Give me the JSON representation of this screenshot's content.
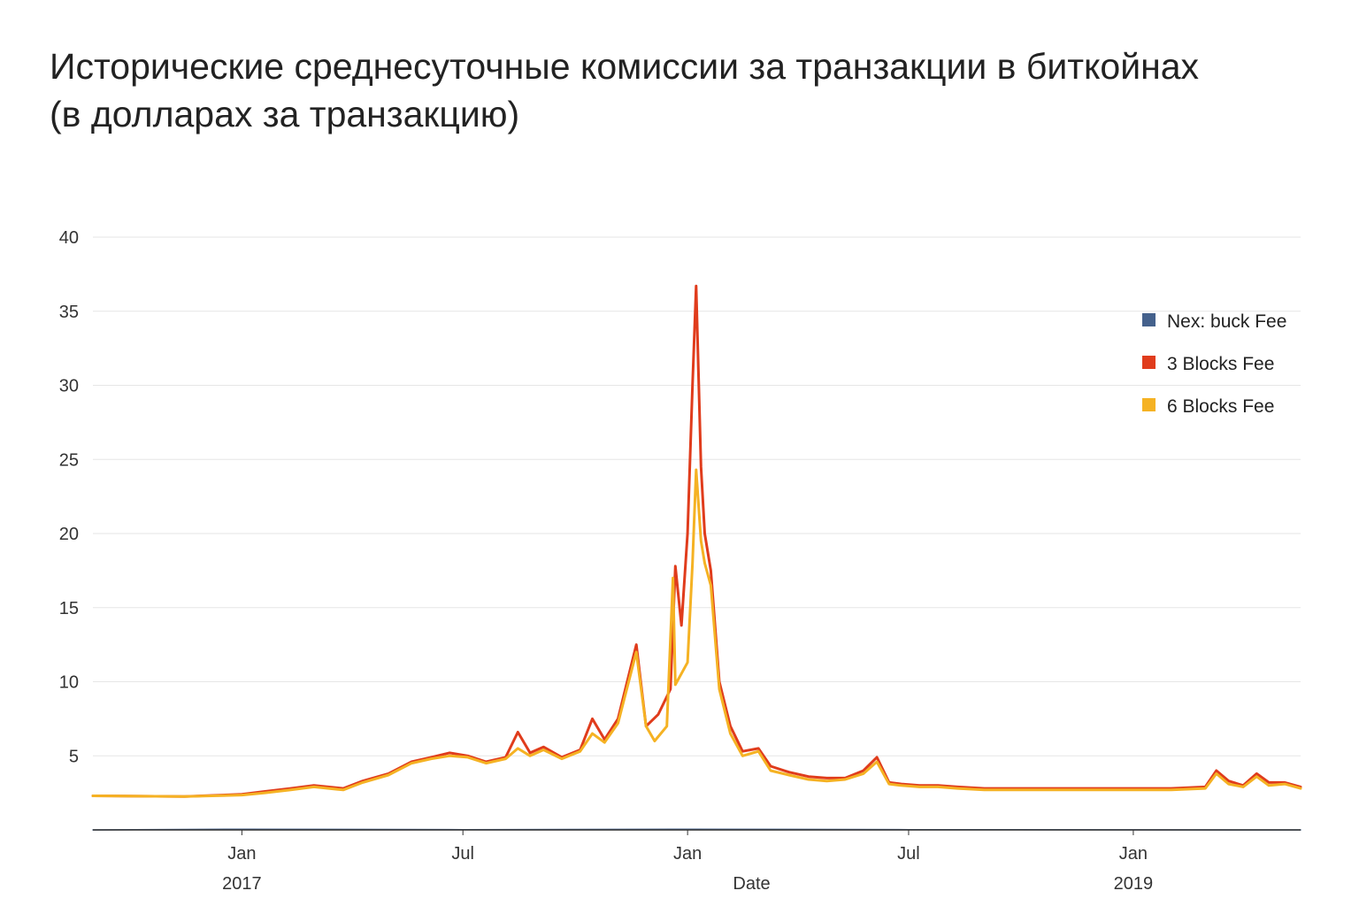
{
  "title_line1": "Исторические среднесуточные комиссии за транзакции в биткойнах",
  "title_line2": "(в долларах за транзакцию)",
  "chart_data": {
    "type": "line",
    "title": "Исторические среднесуточные комиссии за транзакции в биткойнах (в долларах за транзакцию)",
    "xlabel": "Date",
    "ylabel": "",
    "ylim": [
      0,
      40
    ],
    "xlim": [
      "2016-09-01",
      "2019-05-18"
    ],
    "y_ticks": [
      5,
      10,
      15,
      20,
      25,
      30,
      35,
      40
    ],
    "x_ticks": [
      {
        "date": "2017-01-01",
        "label": "Jan",
        "sublabel": "2017"
      },
      {
        "date": "2017-07-01",
        "label": "Jul",
        "sublabel": ""
      },
      {
        "date": "2018-01-01",
        "label": "Jan",
        "sublabel": ""
      },
      {
        "date": "2018-07-01",
        "label": "Jul",
        "sublabel": ""
      },
      {
        "date": "2019-01-01",
        "label": "Jan",
        "sublabel": "2019"
      }
    ],
    "grid": "horizontal",
    "legend_position": "right",
    "series": [
      {
        "name": "Nex: buck Fee",
        "color": "#44618c",
        "points": [
          [
            "2016-09-01",
            0.0
          ],
          [
            "2017-01-01",
            0.05
          ],
          [
            "2017-07-01",
            0.02
          ],
          [
            "2018-01-01",
            0.05
          ],
          [
            "2018-07-01",
            0.02
          ],
          [
            "2019-05-18",
            0.0
          ]
        ]
      },
      {
        "name": "3 Blocks Fee",
        "color": "#e03c1c",
        "points": [
          [
            "2016-09-01",
            2.3
          ],
          [
            "2016-11-15",
            2.25
          ],
          [
            "2017-01-01",
            2.4
          ],
          [
            "2017-01-20",
            2.6
          ],
          [
            "2017-02-10",
            2.8
          ],
          [
            "2017-03-01",
            3.0
          ],
          [
            "2017-03-25",
            2.8
          ],
          [
            "2017-04-10",
            3.3
          ],
          [
            "2017-05-01",
            3.8
          ],
          [
            "2017-05-20",
            4.6
          ],
          [
            "2017-06-05",
            4.9
          ],
          [
            "2017-06-20",
            5.2
          ],
          [
            "2017-07-05",
            5.0
          ],
          [
            "2017-07-20",
            4.6
          ],
          [
            "2017-08-05",
            4.9
          ],
          [
            "2017-08-15",
            6.6
          ],
          [
            "2017-08-25",
            5.2
          ],
          [
            "2017-09-05",
            5.6
          ],
          [
            "2017-09-20",
            4.9
          ],
          [
            "2017-10-05",
            5.4
          ],
          [
            "2017-10-15",
            7.5
          ],
          [
            "2017-10-25",
            6.1
          ],
          [
            "2017-11-05",
            7.5
          ],
          [
            "2017-11-20",
            12.5
          ],
          [
            "2017-11-28",
            7.0
          ],
          [
            "2017-12-08",
            7.8
          ],
          [
            "2017-12-18",
            9.5
          ],
          [
            "2017-12-22",
            17.8
          ],
          [
            "2017-12-27",
            13.8
          ],
          [
            "2018-01-01",
            20.0
          ],
          [
            "2018-01-05",
            30.0
          ],
          [
            "2018-01-08",
            36.7
          ],
          [
            "2018-01-12",
            24.5
          ],
          [
            "2018-01-15",
            20.0
          ],
          [
            "2018-01-20",
            17.5
          ],
          [
            "2018-01-27",
            10.0
          ],
          [
            "2018-02-05",
            7.0
          ],
          [
            "2018-02-15",
            5.3
          ],
          [
            "2018-02-28",
            5.5
          ],
          [
            "2018-03-10",
            4.3
          ],
          [
            "2018-03-25",
            3.9
          ],
          [
            "2018-04-10",
            3.6
          ],
          [
            "2018-04-25",
            3.5
          ],
          [
            "2018-05-10",
            3.5
          ],
          [
            "2018-05-25",
            4.0
          ],
          [
            "2018-06-05",
            4.9
          ],
          [
            "2018-06-15",
            3.2
          ],
          [
            "2018-06-25",
            3.1
          ],
          [
            "2018-07-10",
            3.0
          ],
          [
            "2018-07-25",
            3.0
          ],
          [
            "2018-08-10",
            2.9
          ],
          [
            "2018-09-01",
            2.8
          ],
          [
            "2018-10-01",
            2.8
          ],
          [
            "2018-11-01",
            2.8
          ],
          [
            "2018-12-01",
            2.8
          ],
          [
            "2019-01-01",
            2.8
          ],
          [
            "2019-02-01",
            2.8
          ],
          [
            "2019-03-01",
            2.9
          ],
          [
            "2019-03-10",
            4.0
          ],
          [
            "2019-03-20",
            3.3
          ],
          [
            "2019-04-01",
            3.0
          ],
          [
            "2019-04-12",
            3.8
          ],
          [
            "2019-04-22",
            3.2
          ],
          [
            "2019-05-05",
            3.2
          ],
          [
            "2019-05-18",
            2.9
          ]
        ]
      },
      {
        "name": "6 Blocks Fee",
        "color": "#f5b223",
        "points": [
          [
            "2016-09-01",
            2.3
          ],
          [
            "2016-11-15",
            2.25
          ],
          [
            "2017-01-01",
            2.35
          ],
          [
            "2017-01-20",
            2.5
          ],
          [
            "2017-02-10",
            2.7
          ],
          [
            "2017-03-01",
            2.9
          ],
          [
            "2017-03-25",
            2.7
          ],
          [
            "2017-04-10",
            3.2
          ],
          [
            "2017-05-01",
            3.7
          ],
          [
            "2017-05-20",
            4.5
          ],
          [
            "2017-06-05",
            4.8
          ],
          [
            "2017-06-20",
            5.0
          ],
          [
            "2017-07-05",
            4.9
          ],
          [
            "2017-07-20",
            4.5
          ],
          [
            "2017-08-05",
            4.8
          ],
          [
            "2017-08-15",
            5.5
          ],
          [
            "2017-08-25",
            5.0
          ],
          [
            "2017-09-05",
            5.4
          ],
          [
            "2017-09-20",
            4.8
          ],
          [
            "2017-10-05",
            5.3
          ],
          [
            "2017-10-15",
            6.5
          ],
          [
            "2017-10-25",
            5.9
          ],
          [
            "2017-11-05",
            7.2
          ],
          [
            "2017-11-20",
            12.0
          ],
          [
            "2017-11-28",
            7.0
          ],
          [
            "2017-12-05",
            6.0
          ],
          [
            "2017-12-15",
            7.0
          ],
          [
            "2017-12-20",
            17.0
          ],
          [
            "2017-12-22",
            9.8
          ],
          [
            "2018-01-01",
            11.3
          ],
          [
            "2018-01-05",
            18.0
          ],
          [
            "2018-01-08",
            24.3
          ],
          [
            "2018-01-12",
            19.5
          ],
          [
            "2018-01-15",
            18.0
          ],
          [
            "2018-01-20",
            16.5
          ],
          [
            "2018-01-27",
            9.5
          ],
          [
            "2018-02-05",
            6.5
          ],
          [
            "2018-02-15",
            5.0
          ],
          [
            "2018-02-28",
            5.3
          ],
          [
            "2018-03-10",
            4.0
          ],
          [
            "2018-03-25",
            3.7
          ],
          [
            "2018-04-10",
            3.4
          ],
          [
            "2018-04-25",
            3.3
          ],
          [
            "2018-05-10",
            3.4
          ],
          [
            "2018-05-25",
            3.8
          ],
          [
            "2018-06-05",
            4.6
          ],
          [
            "2018-06-15",
            3.1
          ],
          [
            "2018-06-25",
            3.0
          ],
          [
            "2018-07-10",
            2.9
          ],
          [
            "2018-07-25",
            2.9
          ],
          [
            "2018-08-10",
            2.8
          ],
          [
            "2018-09-01",
            2.7
          ],
          [
            "2018-10-01",
            2.7
          ],
          [
            "2018-11-01",
            2.7
          ],
          [
            "2018-12-01",
            2.7
          ],
          [
            "2019-01-01",
            2.7
          ],
          [
            "2019-02-01",
            2.7
          ],
          [
            "2019-03-01",
            2.8
          ],
          [
            "2019-03-10",
            3.8
          ],
          [
            "2019-03-20",
            3.1
          ],
          [
            "2019-04-01",
            2.9
          ],
          [
            "2019-04-12",
            3.6
          ],
          [
            "2019-04-22",
            3.0
          ],
          [
            "2019-05-05",
            3.1
          ],
          [
            "2019-05-18",
            2.8
          ]
        ]
      }
    ]
  }
}
